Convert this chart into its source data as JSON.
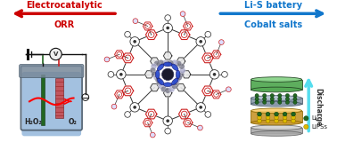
{
  "bg_color": "#ffffff",
  "left_arrow": {
    "text": "Electrocatalytic",
    "subtext": "ORR",
    "color": "#cc0000"
  },
  "right_arrow": {
    "text": "Li-S battery",
    "subtext": "Cobalt salts",
    "color": "#1177cc"
  },
  "discharge_text": "Discharge",
  "discharge_color": "#55ddee",
  "legend": [
    {
      "label": "Li⁺",
      "color": "#226622"
    },
    {
      "label": "LiPSs",
      "color": "#ddbb00"
    }
  ],
  "h2o2_label": "H₂O₂",
  "o2_label": "O₂",
  "beaker_body_color": "#aabbcc",
  "beaker_liquid_color": "#99bbdd",
  "beaker_rim_color": "#778899",
  "electrode_green": "#226622",
  "electrode_red": "#993333",
  "circuit_color": "#111111",
  "v_circle_color": "#eeeeee",
  "battery_top_color": "#55aa55",
  "battery_sep_color": "#8899aa",
  "battery_lip_color": "#ddbb44",
  "battery_base_color": "#aaaaaa",
  "battery_mid_color": "#7799aa",
  "li_dot_color": "#226622",
  "lips_dot_color": "#ddbb00",
  "cof_ring_color": "#cc2222",
  "cof_node_color": "#333333",
  "cof_center_blue": "#2244cc",
  "cof_center_gray": "#777788",
  "cof_blue_dark": "#111166"
}
